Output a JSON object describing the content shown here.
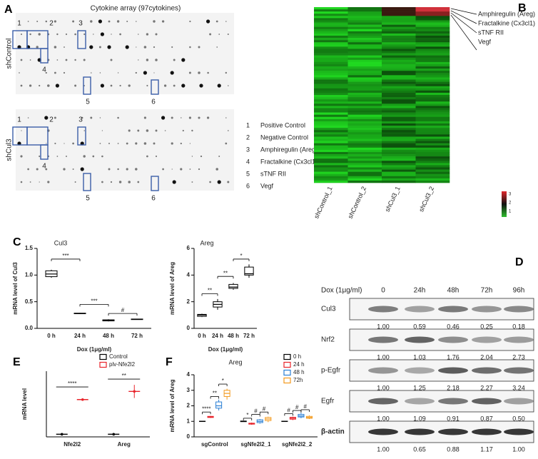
{
  "panel_labels": [
    "A",
    "B",
    "C",
    "D",
    "E",
    "F"
  ],
  "cytokine_array": {
    "title": "Cytokine array (97cytokines)",
    "membranes": [
      "shControl",
      "shCul3"
    ],
    "spot_numbers": [
      "1",
      "2",
      "3",
      "4",
      "5",
      "6"
    ],
    "legend": [
      {
        "number": "1",
        "name": "Positive Control"
      },
      {
        "number": "2",
        "name": "Negative Control"
      },
      {
        "number": "3",
        "name": "Amphiregulin (Areg)"
      },
      {
        "number": "4",
        "name": "Fractalkine (Cx3cl1)"
      },
      {
        "number": "5",
        "name": "sTNF RII"
      },
      {
        "number": "6",
        "name": "Vegf"
      }
    ]
  },
  "heatmap": {
    "proteins": [
      "Amphiregulin (Areg)",
      "Fractalkine (Cx3cl1)",
      "sTNF RII",
      "Vegf"
    ],
    "samples": [
      "shControl_1",
      "shControl_2",
      "shCul3_1",
      "shCul3_2"
    ],
    "colorbar_ticks": [
      3,
      2,
      1
    ]
  },
  "western_blot": {
    "treatment": "Dox (1μg/ml)",
    "timepoints": [
      "0",
      "24h",
      "48h",
      "72h",
      "96h"
    ],
    "rows": [
      {
        "protein": "Cul3",
        "values": [
          "1.00",
          "0.59",
          "0.46",
          "0.25",
          "0.18"
        ]
      },
      {
        "protein": "Nrf2",
        "values": [
          "1.00",
          "1.03",
          "1.76",
          "2.04",
          "2.73"
        ]
      },
      {
        "protein": "p-Egfr",
        "values": [
          "1.00",
          "1.25",
          "2.18",
          "2.27",
          "3.24"
        ]
      },
      {
        "protein": "Egfr",
        "values": [
          "1.00",
          "1.09",
          "0.91",
          "0.87",
          "0.50"
        ]
      },
      {
        "protein": "β-actin",
        "values": [
          "1.00",
          "0.65",
          "0.88",
          "1.17",
          "1.00"
        ]
      }
    ]
  },
  "chart_data": [
    {
      "type": "box",
      "title": "Cul3",
      "x_label": "Dox (1μg/ml)",
      "y_label": "mRNA level of Cul3",
      "categories": [
        "0 h",
        "24 h",
        "48 h",
        "72 h"
      ],
      "series": [
        {
          "color": "#000000",
          "min": [
            0.95,
            0.27,
            0.13,
            0.16
          ],
          "q1": [
            0.97,
            0.275,
            0.14,
            0.165
          ],
          "median": [
            1.02,
            0.28,
            0.15,
            0.17
          ],
          "q3": [
            1.08,
            0.285,
            0.16,
            0.175
          ],
          "max": [
            1.1,
            0.29,
            0.17,
            0.18
          ]
        }
      ],
      "ylim": [
        0,
        1.5
      ],
      "yticks": [
        {
          "value": 0,
          "label": "0.0"
        },
        {
          "value": 0.5,
          "label": "0.5"
        },
        {
          "value": 1,
          "label": "1.0"
        },
        {
          "value": 1.5,
          "label": "1.5"
        }
      ],
      "annotations": [
        "***",
        "***",
        "#"
      ]
    },
    {
      "type": "box",
      "title": "Areg",
      "x_label": "Dox (1μg/ml)",
      "y_label": "mRNA level of Areg",
      "categories": [
        "0 h",
        "24 h",
        "48 h",
        "72 h"
      ],
      "series": [
        {
          "color": "#000000",
          "min": [
            0.85,
            1.4,
            2.9,
            3.8
          ],
          "q1": [
            0.9,
            1.6,
            3.0,
            4.0
          ],
          "median": [
            1.0,
            1.8,
            3.1,
            4.1
          ],
          "q3": [
            1.05,
            2.0,
            3.3,
            4.6
          ],
          "max": [
            1.1,
            2.2,
            3.4,
            4.8
          ]
        }
      ],
      "ylim": [
        0,
        6
      ],
      "yticks": [
        0,
        2,
        4,
        6
      ],
      "annotations": [
        "**",
        "**",
        "*"
      ]
    },
    {
      "type": "dot",
      "y_label": "mRNA level",
      "categories": [
        "Nfe2l2",
        "Areg"
      ],
      "series": [
        {
          "name": "Control",
          "color": "#000000",
          "values": [
            1,
            1
          ],
          "error": [
            0.1,
            0.1
          ]
        },
        {
          "name": "plv-Nfe2l2",
          "color": "#e8242b",
          "values": [
            14.2,
            17.3
          ],
          "error": [
            0.3,
            2.5
          ]
        }
      ],
      "ylim": [
        0,
        25
      ],
      "annotations": [
        "****",
        "**"
      ]
    },
    {
      "type": "box",
      "title": "Areg",
      "y_label": "mRNA level of Areg",
      "categories": [
        "sgControl",
        "sgNfe2l2_1",
        "sgNfe2l2_2"
      ],
      "series": [
        {
          "name": "0 h",
          "color": "#000000",
          "min": [
            0.98,
            0.97,
            0.98
          ],
          "q1": [
            0.99,
            0.98,
            0.99
          ],
          "median": [
            1,
            1,
            1
          ],
          "q3": [
            1.01,
            1.02,
            1.01
          ],
          "max": [
            1.02,
            1.03,
            1.02
          ]
        },
        {
          "name": "24 h",
          "color": "#e8242b",
          "min": [
            1.22,
            0.78,
            1.08
          ],
          "q1": [
            1.25,
            0.82,
            1.14
          ],
          "median": [
            1.28,
            0.85,
            1.2
          ],
          "q3": [
            1.32,
            0.88,
            1.26
          ],
          "max": [
            1.35,
            0.92,
            1.3
          ]
        },
        {
          "name": "48 h",
          "color": "#2a7fd4",
          "min": [
            1.7,
            0.85,
            1.2
          ],
          "q1": [
            1.85,
            0.92,
            1.28
          ],
          "median": [
            2.0,
            1.0,
            1.35
          ],
          "q3": [
            2.25,
            1.1,
            1.45
          ],
          "max": [
            2.4,
            1.15,
            1.55
          ]
        },
        {
          "name": "72h",
          "color": "#f39a1e",
          "min": [
            2.4,
            0.95,
            1.15
          ],
          "q1": [
            2.6,
            1.05,
            1.2
          ],
          "median": [
            2.8,
            1.15,
            1.25
          ],
          "q3": [
            3.0,
            1.25,
            1.32
          ],
          "max": [
            3.1,
            1.3,
            1.38
          ]
        }
      ],
      "ylim": [
        0,
        4
      ],
      "yticks": [
        0,
        1,
        2,
        3,
        4
      ],
      "annotations": [
        "****",
        "**",
        "*",
        "*",
        "#",
        "#",
        "#",
        "#",
        "#"
      ]
    }
  ]
}
